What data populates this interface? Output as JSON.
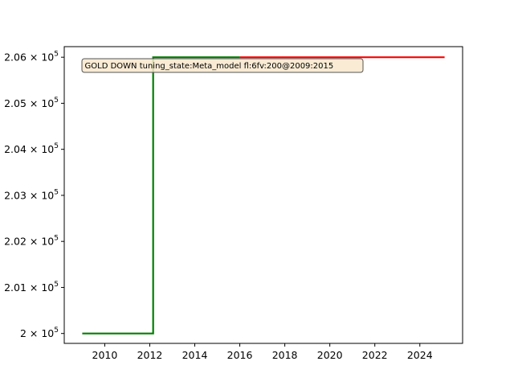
{
  "chart_data": {
    "type": "line",
    "title": "",
    "xlabel": "",
    "ylabel": "",
    "annotation": "GOLD DOWN tuning_state:Meta_model fl:6fv:200@2009:2015",
    "xlim": [
      2008.2,
      2025.9
    ],
    "ylim": [
      199785,
      206230
    ],
    "x_ticks": [
      2010,
      2012,
      2014,
      2016,
      2018,
      2020,
      2022,
      2024
    ],
    "y_ticks": [
      {
        "value": 200000,
        "base": "2 × 10",
        "exp": "5"
      },
      {
        "value": 201000,
        "base": "2.01 × 10",
        "exp": "5"
      },
      {
        "value": 202000,
        "base": "2.02 × 10",
        "exp": "5"
      },
      {
        "value": 203000,
        "base": "2.03 × 10",
        "exp": "5"
      },
      {
        "value": 204000,
        "base": "2.04 × 10",
        "exp": "5"
      },
      {
        "value": 205000,
        "base": "2.05 × 10",
        "exp": "5"
      },
      {
        "value": 206000,
        "base": "2.06 × 10",
        "exp": "5"
      }
    ],
    "grid": false,
    "legend": "none",
    "series": [
      {
        "color": "#ff0000",
        "x": [
          2016.0,
          2025.1
        ],
        "y": [
          206000,
          206000
        ]
      },
      {
        "color": "#008000",
        "x": [
          2009.0,
          2012.15,
          2012.15,
          2016.0
        ],
        "y": [
          200000,
          200000,
          206000,
          206000
        ]
      }
    ]
  }
}
